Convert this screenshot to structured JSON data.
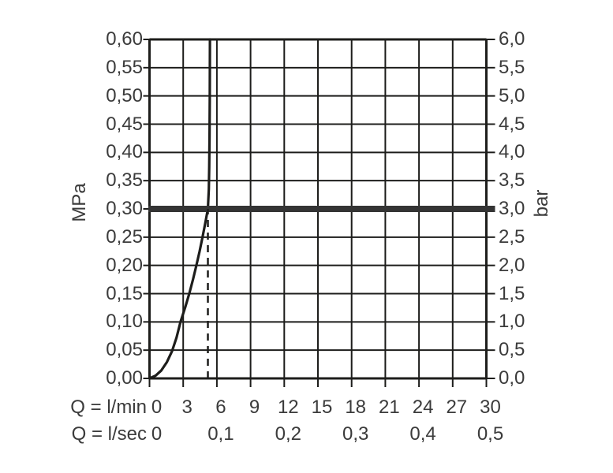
{
  "chart_data": {
    "type": "line",
    "title": "",
    "x_range_lmin": [
      0,
      30
    ],
    "y_range_mpa": [
      0,
      0.6
    ],
    "grid": {
      "x_step_lmin": 3,
      "y_step_mpa": 0.05,
      "grid_on": true
    },
    "axis_left": {
      "unit": "MPa",
      "tick_labels": [
        "0,60",
        "0,55",
        "0,50",
        "0,45",
        "0,40",
        "0,35",
        "0,30",
        "0,25",
        "0,20",
        "0,15",
        "0,10",
        "0,05",
        "0,00"
      ],
      "tick_values_mpa": [
        0.6,
        0.55,
        0.5,
        0.45,
        0.4,
        0.35,
        0.3,
        0.25,
        0.2,
        0.15,
        0.1,
        0.05,
        0.0
      ]
    },
    "axis_right": {
      "unit": "bar",
      "tick_labels": [
        "6,0",
        "5,5",
        "5,0",
        "4,5",
        "4,0",
        "3,5",
        "3,0",
        "2,5",
        "2,0",
        "1,5",
        "1,0",
        "0,5",
        "0,0"
      ],
      "tick_values_bar": [
        6.0,
        5.5,
        5.0,
        4.5,
        4.0,
        3.5,
        3.0,
        2.5,
        2.0,
        1.5,
        1.0,
        0.5,
        0.0
      ]
    },
    "axis_bottom_lmin": {
      "label": "Q = l/min",
      "tick_labels": [
        "0",
        "3",
        "6",
        "9",
        "12",
        "15",
        "18",
        "21",
        "24",
        "27",
        "30"
      ],
      "tick_values": [
        0,
        3,
        6,
        9,
        12,
        15,
        18,
        21,
        24,
        27,
        30
      ]
    },
    "axis_bottom_lsec": {
      "label": "Q = l/sec",
      "tick_labels": [
        "0",
        "0,1",
        "0,2",
        "0,3",
        "0,4",
        "0,5"
      ],
      "tick_positions_lmin": [
        0,
        6,
        12,
        18,
        24,
        30
      ]
    },
    "series": [
      {
        "name": "pressure-flow-curve",
        "style": "solid",
        "points_lmin_mpa": [
          [
            0,
            0
          ],
          [
            0.55,
            0.005
          ],
          [
            1.05,
            0.014
          ],
          [
            1.55,
            0.029
          ],
          [
            2.0,
            0.048
          ],
          [
            2.4,
            0.072
          ],
          [
            2.76,
            0.1
          ],
          [
            3.17,
            0.125
          ],
          [
            3.54,
            0.15
          ],
          [
            3.87,
            0.175
          ],
          [
            4.17,
            0.2
          ],
          [
            4.46,
            0.225
          ],
          [
            4.72,
            0.25
          ],
          [
            4.97,
            0.275
          ],
          [
            5.2,
            0.3
          ],
          [
            5.28,
            0.335
          ],
          [
            5.32,
            0.375
          ],
          [
            5.35,
            0.43
          ],
          [
            5.37,
            0.5
          ],
          [
            5.38,
            0.6
          ]
        ]
      },
      {
        "name": "operating-pressure-line",
        "style": "thick-horizontal",
        "value_mpa": 0.3
      },
      {
        "name": "flow-at-3bar-marker",
        "style": "dashed-vertical",
        "x_lmin": 5.2,
        "from_mpa": 0.0,
        "to_mpa": 0.3
      }
    ],
    "colors": {
      "grid": "#1d1d1b",
      "curve": "#1d1d1b",
      "thick_line": "#343434",
      "text": "#3b3b3b",
      "background": "#ffffff"
    }
  }
}
